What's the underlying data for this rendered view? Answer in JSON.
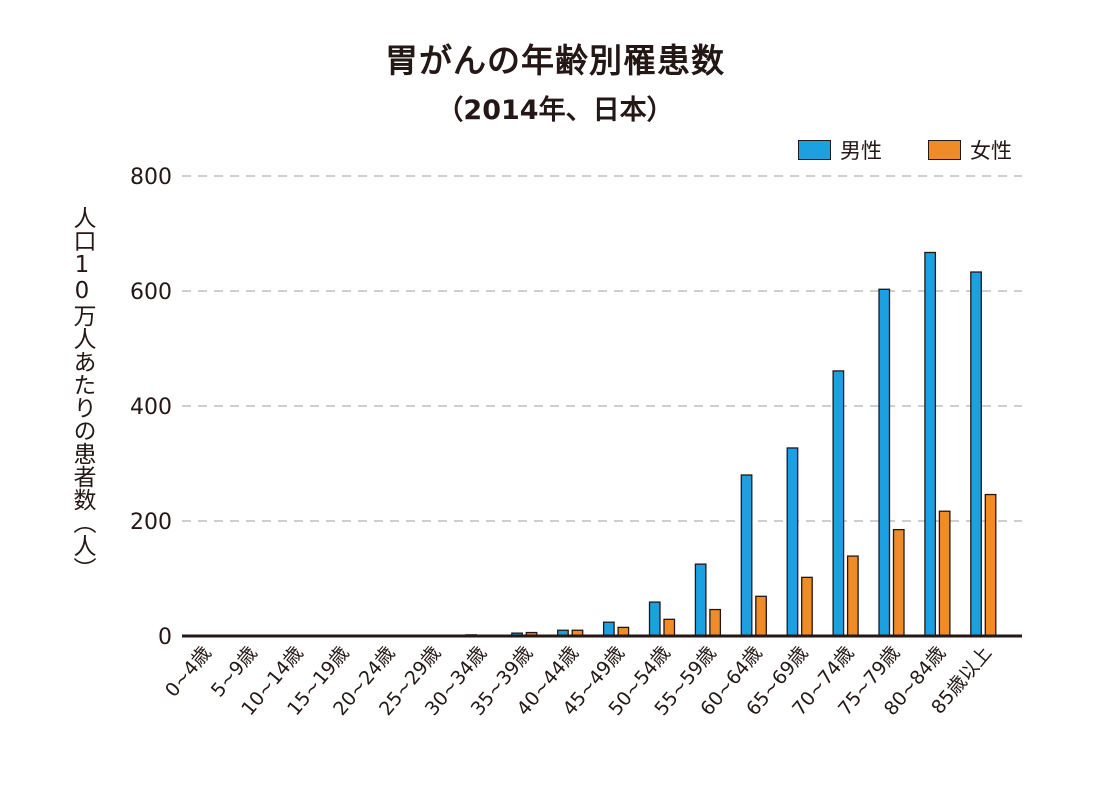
{
  "chart_data": {
    "type": "bar",
    "title": "胃がんの年齢別罹患数",
    "subtitle": "（2014年、日本）",
    "ylabel": "人口10万人あたりの患者数（人）",
    "xlabel": "",
    "ylim": [
      0,
      800
    ],
    "yticks": [
      0,
      200,
      400,
      600,
      800
    ],
    "grid": true,
    "legend_position": "top-right",
    "categories": [
      "0~4歳",
      "5~9歳",
      "10~14歳",
      "15~19歳",
      "20~24歳",
      "25~29歳",
      "30~34歳",
      "35~39歳",
      "40~44歳",
      "45~49歳",
      "50~54歳",
      "55~59歳",
      "60~64歳",
      "65~69歳",
      "70~74歳",
      "75~79歳",
      "80~84歳",
      "85歳以上"
    ],
    "series": [
      {
        "name": "男性",
        "color": "#1ba1e2",
        "values": [
          0,
          0,
          0,
          0,
          0,
          0,
          2,
          5,
          10,
          24,
          59,
          125,
          280,
          327,
          461,
          603,
          667,
          633
        ]
      },
      {
        "name": "女性",
        "color": "#f08c28",
        "values": [
          0,
          0,
          0,
          0,
          0,
          0,
          1,
          6,
          10,
          15,
          29,
          46,
          69,
          102,
          139,
          185,
          217,
          246
        ]
      }
    ]
  }
}
